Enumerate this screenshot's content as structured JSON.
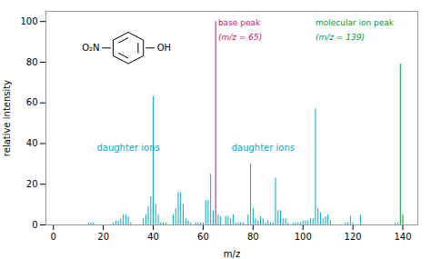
{
  "chart_data": {
    "type": "bar",
    "xlabel": "m/z",
    "ylabel": "relative intensity",
    "xlim": [
      -3,
      146
    ],
    "ylim": [
      0,
      105
    ],
    "xticks": [
      0,
      20,
      40,
      60,
      80,
      100,
      120,
      140
    ],
    "yticks": [
      0,
      20,
      40,
      60,
      80,
      100
    ],
    "series": [
      {
        "color": "#00AACC",
        "x": [
          14,
          15,
          16,
          24,
          25,
          26,
          27,
          28,
          29,
          30,
          31,
          36,
          37,
          38,
          39,
          40,
          41,
          42,
          43,
          44,
          45,
          48,
          49,
          50,
          51,
          52,
          53,
          54,
          55,
          57,
          58,
          59,
          60,
          61,
          62,
          63,
          64,
          66,
          67,
          69,
          70,
          71,
          72,
          73,
          74,
          75,
          76,
          78,
          79,
          80,
          81,
          82,
          83,
          84,
          85,
          86,
          87,
          88,
          89,
          90,
          91,
          92,
          93,
          94,
          96,
          97,
          98,
          99,
          100,
          101,
          102,
          103,
          104,
          105,
          106,
          107,
          108,
          109,
          110,
          111,
          117,
          118,
          119,
          120,
          123,
          137,
          138
        ],
        "values": [
          1,
          1,
          1,
          1,
          2,
          2,
          3,
          5,
          5,
          4,
          1,
          3,
          5,
          9,
          14,
          63,
          10,
          5,
          1,
          1,
          1,
          5,
          8,
          16,
          16,
          10,
          3,
          2,
          1,
          1,
          1,
          1,
          1,
          12,
          12,
          25,
          7,
          5,
          4,
          4,
          4,
          3,
          5,
          1,
          1,
          1,
          1,
          5,
          30,
          8,
          3,
          2,
          4,
          3,
          1,
          2,
          1,
          1,
          23,
          7,
          7,
          3,
          3,
          1,
          1,
          1,
          1,
          1,
          2,
          2,
          2,
          3,
          3,
          57,
          8,
          6,
          3,
          4,
          5,
          2,
          1,
          1,
          4,
          1,
          5,
          1,
          1
        ]
      },
      {
        "color": "#CC1177",
        "x": [
          65
        ],
        "values": [
          100
        ]
      },
      {
        "color": "#009933",
        "x": [
          139,
          140
        ],
        "values": [
          79,
          5
        ]
      }
    ],
    "annotations": [
      {
        "text": "base peak",
        "color": "#CC1177"
      },
      {
        "text": "(m/z = 65)",
        "color": "#CC1177"
      },
      {
        "text": "molecular ion peak",
        "color": "#009933"
      },
      {
        "text": "(m/z = 139)",
        "color": "#009933"
      },
      {
        "text": "daughter ions",
        "color": "#00AACC"
      },
      {
        "text": "daughter ions",
        "color": "#00AACC"
      },
      {
        "text": "O₂N",
        "color": "#000000"
      },
      {
        "text": "OH",
        "color": "#000000"
      }
    ]
  }
}
